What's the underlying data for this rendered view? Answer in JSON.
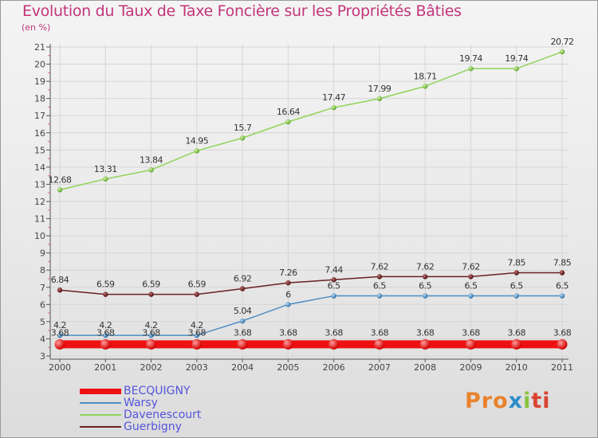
{
  "title": "Evolution du Taux de Taxe Foncière sur les Propriétés Bâties",
  "unit_label": "(en %)",
  "brand": {
    "p1": "Pro",
    "p2": "x",
    "p3": "i",
    "p4": "ti"
  },
  "chart_data": {
    "type": "line",
    "title": "Evolution du Taux de Taxe Foncière sur les Propriétés Bâties",
    "ylabel": "(en %)",
    "categories": [
      "2000",
      "2001",
      "2002",
      "2003",
      "2004",
      "2005",
      "2006",
      "2007",
      "2008",
      "2009",
      "2010",
      "2011"
    ],
    "ylim": [
      3,
      21
    ],
    "yticks": [
      "3",
      "4",
      "5",
      "6",
      "7",
      "8",
      "9",
      "10",
      "11",
      "12",
      "13",
      "14",
      "15",
      "16",
      "17",
      "18",
      "19",
      "20",
      "21"
    ],
    "grid": true,
    "legend_position": "bottom-left",
    "series": [
      {
        "name": "BECQUIGNY",
        "color": "#ee1111",
        "values": [
          3.68,
          3.68,
          3.68,
          3.68,
          3.68,
          3.68,
          3.68,
          3.68,
          3.68,
          3.68,
          3.68,
          3.68
        ],
        "labels": [
          "3.68",
          "3.68",
          "3.68",
          "3.68",
          "3.68",
          "3.68",
          "3.68",
          "3.68",
          "3.68",
          "3.68",
          "3.68",
          "3.68"
        ]
      },
      {
        "name": "Warsy",
        "color": "#4d8ec6",
        "values": [
          4.2,
          4.2,
          4.2,
          4.2,
          5.04,
          6,
          6.5,
          6.5,
          6.5,
          6.5,
          6.5,
          6.5
        ],
        "labels": [
          "4.2",
          "4.2",
          "4.2",
          "4.2",
          "5.04",
          "6",
          "6.5",
          "6.5",
          "6.5",
          "6.5",
          "6.5",
          "6.5"
        ]
      },
      {
        "name": "Davenescourt",
        "color": "#8fd45a",
        "values": [
          12.68,
          13.31,
          13.84,
          14.95,
          15.7,
          16.64,
          17.47,
          17.99,
          18.71,
          19.74,
          19.74,
          20.72
        ],
        "labels": [
          "12.68",
          "13.31",
          "13.84",
          "14.95",
          "15.7",
          "16.64",
          "17.47",
          "17.99",
          "18.71",
          "19.74",
          "19.74",
          "20.72"
        ]
      },
      {
        "name": "Guerbigny",
        "color": "#6b1f1f",
        "values": [
          6.84,
          6.59,
          6.59,
          6.59,
          6.92,
          7.26,
          7.44,
          7.62,
          7.62,
          7.62,
          7.85,
          7.85
        ],
        "labels": [
          "6.84",
          "6.59",
          "6.59",
          "6.59",
          "6.92",
          "7.26",
          "7.44",
          "7.62",
          "7.62",
          "7.62",
          "7.85",
          "7.85"
        ]
      }
    ]
  }
}
